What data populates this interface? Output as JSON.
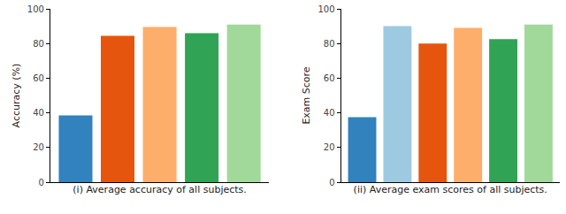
{
  "chart_data": [
    {
      "type": "bar",
      "x_label": "(i) Average accuracy of all subjects.",
      "y_label": "Accuracy (%)",
      "categories": [
        null,
        null,
        null,
        null,
        null
      ],
      "values": [
        38.5,
        84.5,
        89.5,
        86,
        91
      ],
      "colors": [
        "#3182bd",
        "#e6550d",
        "#fdae6b",
        "#31a354",
        "#a1d99b"
      ],
      "ylim": [
        0,
        100
      ],
      "yticks": [
        0,
        20,
        40,
        60,
        80,
        100
      ],
      "grid": false,
      "tick_labels": "y"
    },
    {
      "type": "bar",
      "x_label": "(ii) Average exam scores of all subjects.",
      "y_label": "Exam Score",
      "categories": [
        null,
        null,
        null,
        null,
        null,
        null
      ],
      "values": [
        37.5,
        90,
        80,
        89,
        82.5,
        91
      ],
      "colors": [
        "#3182bd",
        "#9ecae1",
        "#e6550d",
        "#fdae6b",
        "#31a354",
        "#a1d99b"
      ],
      "ylim": [
        0,
        100
      ],
      "yticks": [
        0,
        20,
        40,
        60,
        80,
        100
      ],
      "grid": false,
      "tick_labels": "y"
    }
  ]
}
